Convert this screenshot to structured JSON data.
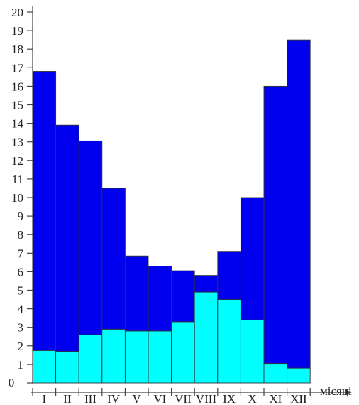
{
  "chart_data": {
    "type": "bar",
    "stacked": true,
    "xlabel": "місяці",
    "ylabel": "",
    "title": "",
    "ylim": [
      0,
      20
    ],
    "yticks": [
      0,
      1,
      2,
      3,
      4,
      5,
      6,
      7,
      8,
      9,
      10,
      11,
      12,
      13,
      14,
      15,
      16,
      17,
      18,
      19,
      20
    ],
    "categories": [
      "I",
      "II",
      "III",
      "IV",
      "V",
      "VI",
      "VII",
      "VIII",
      "IX",
      "X",
      "XI",
      "XII"
    ],
    "series": [
      {
        "color": "#00ffff",
        "values": [
          1.75,
          1.7,
          2.6,
          2.9,
          2.8,
          2.8,
          3.3,
          4.9,
          4.5,
          3.4,
          1.05,
          0.8
        ]
      },
      {
        "color": "#0000ee",
        "values": [
          15.05,
          12.2,
          10.45,
          7.6,
          4.05,
          3.5,
          2.75,
          0.9,
          2.6,
          6.6,
          14.95,
          17.7
        ]
      }
    ],
    "grid": false,
    "legend": "none"
  }
}
